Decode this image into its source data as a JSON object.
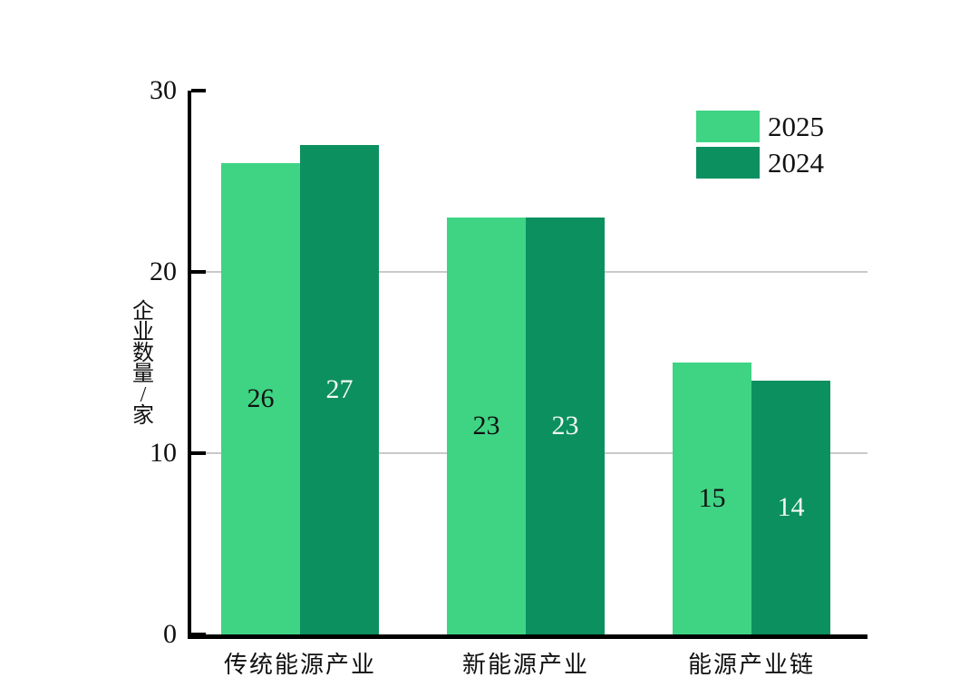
{
  "page": {
    "background": "#ffffff"
  },
  "chart_data": {
    "type": "bar",
    "title": "",
    "categories": [
      "传统能源产业",
      "新能源产业",
      "能源产业链"
    ],
    "series": [
      {
        "name": "2025",
        "values": [
          26,
          23,
          15
        ],
        "color": "#3ed484",
        "value_label_color": "#111111"
      },
      {
        "name": "2024",
        "values": [
          27,
          23,
          14
        ],
        "color": "#0c9060",
        "value_label_color": "#f2f8f2"
      }
    ],
    "xlabel": "",
    "ylabel": "企业数量/家",
    "ylim": [
      0,
      30
    ],
    "yticks": [
      0,
      10,
      20,
      30
    ],
    "gridline_values": [
      10,
      20
    ],
    "grid_color": "#c9c9c9",
    "axis_color": "#000000",
    "grid": "horizontal gridlines at 10 and 20 only, drawn behind bars",
    "legend_position": "top-right",
    "legend_entries": [
      "2025",
      "2024"
    ],
    "value_labels_shown": true
  }
}
